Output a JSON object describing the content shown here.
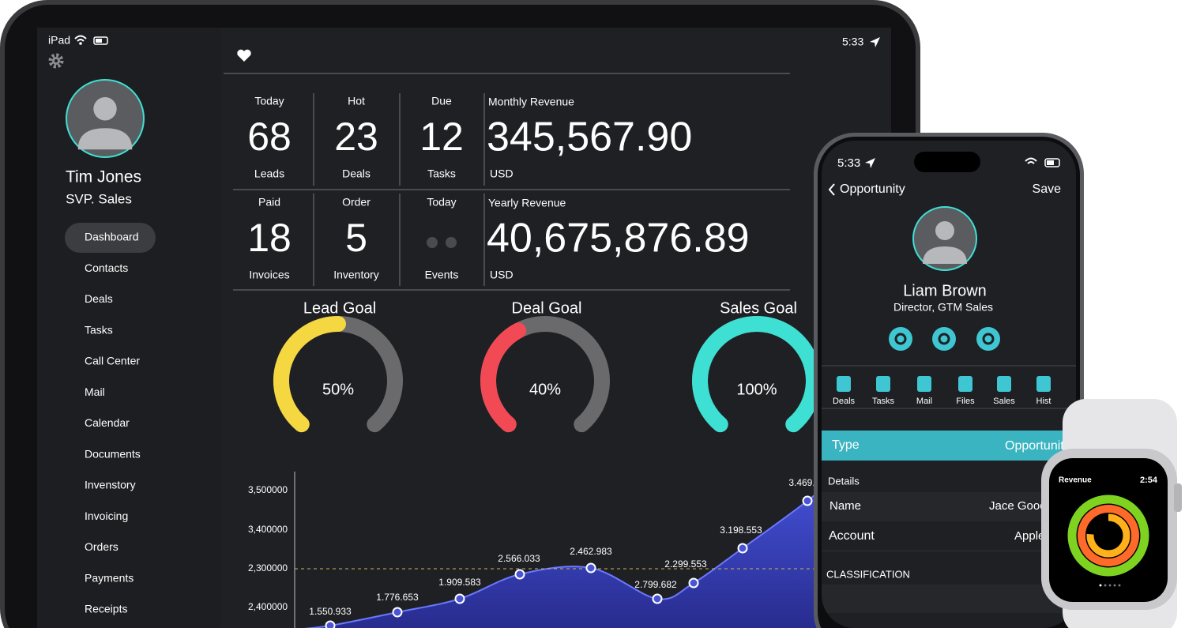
{
  "ipad": {
    "status": {
      "device": "iPad",
      "time": "5:33"
    },
    "profile": {
      "name": "Tim Jones",
      "role": "SVP. Sales"
    },
    "menu": [
      "Dashboard",
      "Contacts",
      "Deals",
      "Tasks",
      "Call Center",
      "Mail",
      "Calendar",
      "Documents",
      "Invenstory",
      "Invoicing",
      "Orders",
      "Payments",
      "Receipts"
    ],
    "stats": [
      [
        {
          "top": "Today",
          "value": 68,
          "bottom": "Leads"
        },
        {
          "top": "Hot",
          "value": 23,
          "bottom": "Deals"
        },
        {
          "top": "Due",
          "value": 12,
          "bottom": "Tasks"
        }
      ],
      [
        {
          "top": "Paid",
          "value": 18,
          "bottom": "Invoices"
        },
        {
          "top": "Order",
          "value": 5,
          "bottom": "Inventory"
        },
        {
          "top": "Today",
          "bottom": "Events"
        }
      ]
    ],
    "revenue": [
      {
        "label": "Monthly Revenue",
        "value": "345,567.90",
        "unit": "USD"
      },
      {
        "label": "Yearly Revenue",
        "value": "40,675,876.89",
        "unit": "USD"
      }
    ],
    "goals": [
      {
        "title": "Lead Goal",
        "percent": 50,
        "label": "50%",
        "color": "#f5d742"
      },
      {
        "title": "Deal Goal",
        "percent": 40,
        "label": "40%",
        "color": "#f24a54"
      },
      {
        "title": "Sales Goal",
        "percent": 100,
        "label": "100%",
        "color": "#3ee0d4"
      }
    ],
    "chart": {
      "yaxis": [
        "3,500000",
        "3,400000",
        "2,300000",
        "2,400000"
      ],
      "points": [
        "1.550.933",
        "1.776.653",
        "1.909.583",
        "2.566.033",
        "2.462.983",
        "2.799.682",
        "2.299.553",
        "3.198.553",
        "3.469."
      ]
    }
  },
  "phone": {
    "time": "5:33",
    "back": "Opportunity",
    "save": "Save",
    "name": "Liam Brown",
    "role": "Director, GTM Sales",
    "tabs": [
      "Deals",
      "Tasks",
      "Mail",
      "Files",
      "Sales",
      "Hist"
    ],
    "type": {
      "label": "Type",
      "value": "Opportunity"
    },
    "section": "Details",
    "rows": [
      {
        "label": "Name",
        "value": "Jace Good"
      },
      {
        "label": "Account",
        "value": "Apple"
      }
    ],
    "classification": "CLASSIFICATION"
  },
  "watch": {
    "title": "Revenue",
    "time": "2:54"
  }
}
